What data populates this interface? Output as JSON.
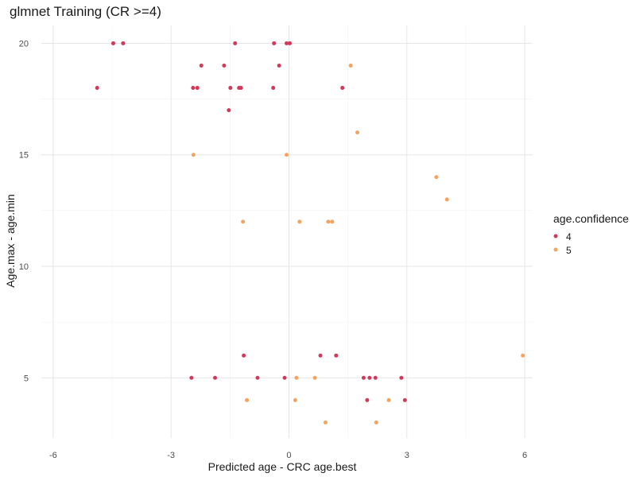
{
  "chart_data": {
    "type": "scatter",
    "title": "glmnet Training (CR >=4)",
    "xlabel": "Predicted age - CRC age.best",
    "ylabel": "Age.max - age.min",
    "xlim": [
      -6.3,
      6.2
    ],
    "ylim": [
      2.3,
      20.8
    ],
    "x_ticks": [
      -6,
      -3,
      0,
      3,
      6
    ],
    "x_tick_labels": [
      "-6",
      "-3",
      "0",
      "3",
      "6"
    ],
    "y_ticks": [
      5,
      10,
      15,
      20
    ],
    "y_tick_labels": [
      "5",
      "10",
      "15",
      "20"
    ],
    "grid": true,
    "legend": {
      "title": "age.confidence",
      "position": "right"
    },
    "series": [
      {
        "name": "4",
        "color": "#d1395a",
        "points": [
          [
            -4.47,
            20
          ],
          [
            -4.22,
            20
          ],
          [
            -1.37,
            20
          ],
          [
            -0.38,
            20
          ],
          [
            -0.06,
            20
          ],
          [
            0.02,
            20
          ],
          [
            -2.23,
            19
          ],
          [
            -1.65,
            19
          ],
          [
            -0.25,
            19
          ],
          [
            -4.88,
            18
          ],
          [
            -2.44,
            18
          ],
          [
            -2.33,
            18
          ],
          [
            -1.49,
            18
          ],
          [
            -1.27,
            18
          ],
          [
            -1.22,
            18
          ],
          [
            -0.4,
            18
          ],
          [
            1.36,
            18
          ],
          [
            -1.53,
            17
          ],
          [
            -1.15,
            6
          ],
          [
            0.8,
            6
          ],
          [
            1.2,
            6
          ],
          [
            -2.48,
            5
          ],
          [
            -1.88,
            5
          ],
          [
            -0.8,
            5
          ],
          [
            -0.11,
            5
          ],
          [
            1.9,
            5
          ],
          [
            2.05,
            5
          ],
          [
            2.2,
            5
          ],
          [
            2.86,
            5
          ],
          [
            1.99,
            4
          ],
          [
            2.95,
            4
          ]
        ]
      },
      {
        "name": "5",
        "color": "#f4a460",
        "points": [
          [
            1.57,
            19
          ],
          [
            1.74,
            16
          ],
          [
            -2.43,
            15
          ],
          [
            -0.06,
            15
          ],
          [
            3.75,
            14
          ],
          [
            4.02,
            13
          ],
          [
            -1.17,
            12
          ],
          [
            0.27,
            12
          ],
          [
            1.0,
            12
          ],
          [
            1.1,
            12
          ],
          [
            5.95,
            6
          ],
          [
            0.19,
            5
          ],
          [
            0.66,
            5
          ],
          [
            -1.07,
            4
          ],
          [
            0.16,
            4
          ],
          [
            2.54,
            4
          ],
          [
            0.93,
            3
          ],
          [
            2.22,
            3
          ]
        ]
      }
    ]
  }
}
